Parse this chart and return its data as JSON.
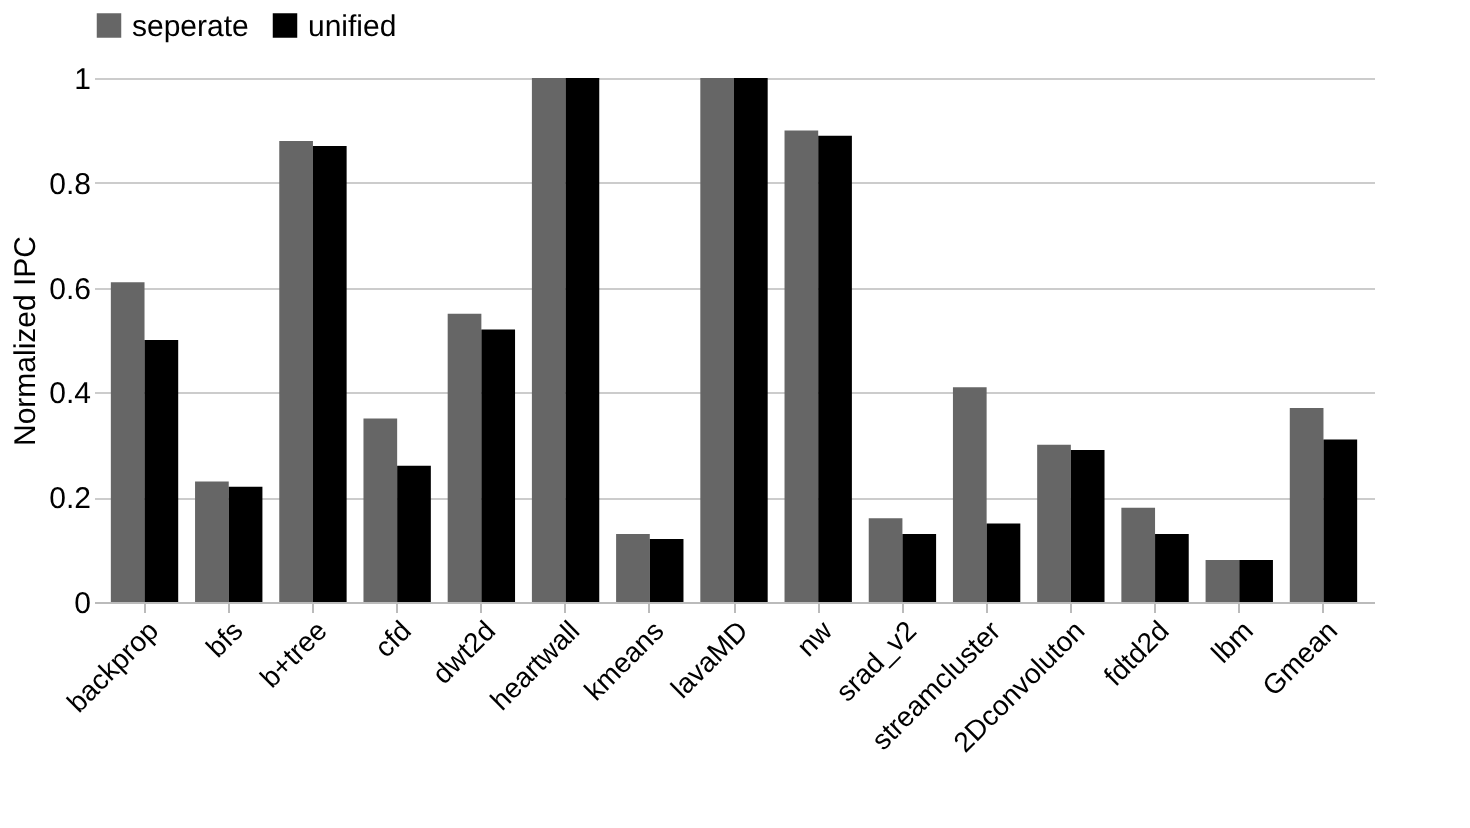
{
  "chart_data": {
    "type": "bar",
    "ylabel": "Normalized IPC",
    "categories": [
      "backprop",
      "bfs",
      "b+tree",
      "cfd",
      "dwt2d",
      "heartwall",
      "kmeans",
      "lavaMD",
      "nw",
      "srad_v2",
      "streamcluster",
      "2Dconvoluton",
      "fdtd2d",
      "lbm",
      "Gmean"
    ],
    "series": [
      {
        "name": "seperate",
        "color": "#666666",
        "values": [
          0.61,
          0.23,
          0.88,
          0.35,
          0.55,
          1,
          0.13,
          1,
          0.9,
          0.16,
          0.41,
          0.3,
          0.18,
          0.08,
          0.37
        ]
      },
      {
        "name": "unified",
        "color": "#000000",
        "values": [
          0.5,
          0.22,
          0.87,
          0.26,
          0.52,
          1,
          0.12,
          1,
          0.89,
          0.13,
          0.15,
          0.29,
          0.13,
          0.08,
          0.31
        ]
      }
    ],
    "ylim": [
      0,
      1
    ],
    "yticks": [
      0,
      0.2,
      0.4,
      0.6,
      0.8,
      1
    ],
    "grid": "y",
    "legend": "top"
  }
}
